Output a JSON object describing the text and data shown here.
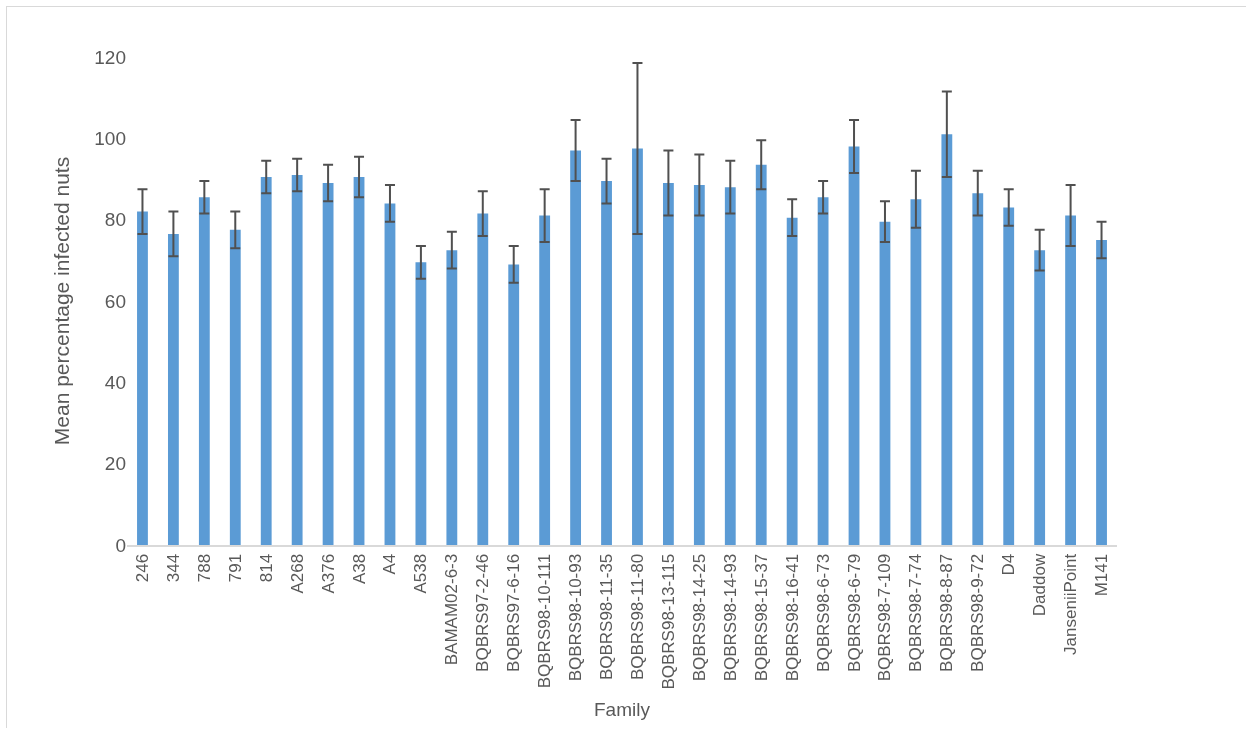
{
  "chart_data": {
    "type": "bar",
    "xlabel": "Family",
    "ylabel": "Mean percentage infected nuts",
    "categories": [
      "246",
      "344",
      "788",
      "791",
      "814",
      "A268",
      "A376",
      "A38",
      "A4",
      "A538",
      "BAMAM02-6-3",
      "BQBRS97-2-46",
      "BQBRS97-6-16",
      "BQBRS98-10-111",
      "BQBRS98-10-93",
      "BQBRS98-11-35",
      "BQBRS98-11-80",
      "BQBRS98-13-115",
      "BQBRS98-14-25",
      "BQBRS98-14-93",
      "BQBRS98-15-37",
      "BQBRS98-16-41",
      "BQBRS98-6-73",
      "BQBRS98-6-79",
      "BQBRS98-7-109",
      "BQBRS98-7-74",
      "BQBRS98-8-87",
      "BQBRS98-9-72",
      "D4",
      "Daddow",
      "JanseniiPoint",
      "M141"
    ],
    "values": [
      82,
      76.5,
      85.5,
      77.5,
      90.5,
      91,
      89,
      90.5,
      84,
      69.5,
      72.5,
      81.5,
      69,
      81,
      97,
      89.5,
      97.5,
      89,
      88.5,
      88,
      93.5,
      80.5,
      85.5,
      98,
      79.5,
      85,
      101,
      86.5,
      83,
      72.5,
      81,
      75
    ],
    "errors": [
      5.5,
      5.5,
      4,
      4.5,
      4,
      4,
      4.5,
      5,
      4.5,
      4,
      4.5,
      5.5,
      4.5,
      6.5,
      7.5,
      5.5,
      21,
      8,
      7.5,
      6.5,
      6,
      4.5,
      4,
      6.5,
      5,
      7,
      10.5,
      5.5,
      4.5,
      5,
      7.5,
      4.5
    ],
    "color": "#5b9bd5",
    "ylim": [
      0,
      120
    ],
    "yticks": [
      0,
      20,
      40,
      60,
      80,
      100,
      120
    ],
    "grid": false
  }
}
